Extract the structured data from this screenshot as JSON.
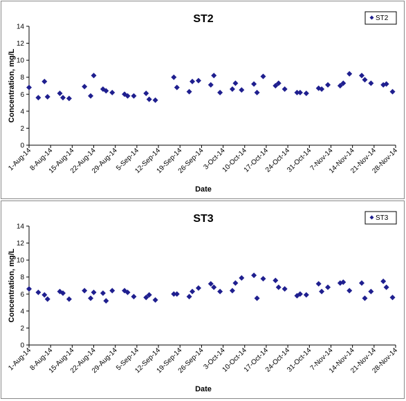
{
  "chart_data": [
    {
      "type": "scatter",
      "title": "ST2",
      "xlabel": "Date",
      "ylabel": "Concentration, mg/L",
      "ylim": [
        0,
        14
      ],
      "yticks": [
        0,
        2,
        4,
        6,
        8,
        10,
        12,
        14
      ],
      "xlim": [
        "2014-08-01",
        "2014-11-28"
      ],
      "xtick_labels": [
        "1-Aug-14",
        "8-Aug-14",
        "15-Aug-14",
        "22-Aug-14",
        "29-Aug-14",
        "5-Sep-14",
        "12-Sep-14",
        "19-Sep-14",
        "26-Sep-14",
        "3-Oct-14",
        "10-Oct-14",
        "17-Oct-14",
        "24-Oct-14",
        "31-Oct-14",
        "7-Nov-14",
        "14-Nov-14",
        "21-Nov-14",
        "28-Nov-14"
      ],
      "grid": false,
      "legend_position": "top-right",
      "series": [
        {
          "name": "ST2",
          "color": "#1f1f8f",
          "marker": "diamond",
          "points": [
            [
              "2014-08-01",
              6.8
            ],
            [
              "2014-08-04",
              5.6
            ],
            [
              "2014-08-06",
              7.5
            ],
            [
              "2014-08-07",
              5.7
            ],
            [
              "2014-08-11",
              6.1
            ],
            [
              "2014-08-12",
              5.6
            ],
            [
              "2014-08-14",
              5.5
            ],
            [
              "2014-08-19",
              6.9
            ],
            [
              "2014-08-21",
              5.8
            ],
            [
              "2014-08-22",
              8.2
            ],
            [
              "2014-08-25",
              6.6
            ],
            [
              "2014-08-26",
              6.4
            ],
            [
              "2014-08-28",
              6.2
            ],
            [
              "2014-09-01",
              6.0
            ],
            [
              "2014-09-02",
              5.8
            ],
            [
              "2014-09-04",
              5.8
            ],
            [
              "2014-09-08",
              6.1
            ],
            [
              "2014-09-09",
              5.4
            ],
            [
              "2014-09-11",
              5.3
            ],
            [
              "2014-09-17",
              8.0
            ],
            [
              "2014-09-18",
              6.8
            ],
            [
              "2014-09-22",
              6.3
            ],
            [
              "2014-09-23",
              7.5
            ],
            [
              "2014-09-25",
              7.6
            ],
            [
              "2014-09-29",
              7.1
            ],
            [
              "2014-09-30",
              8.2
            ],
            [
              "2014-10-02",
              6.2
            ],
            [
              "2014-10-06",
              6.6
            ],
            [
              "2014-10-07",
              7.3
            ],
            [
              "2014-10-09",
              6.5
            ],
            [
              "2014-10-13",
              7.2
            ],
            [
              "2014-10-14",
              6.2
            ],
            [
              "2014-10-16",
              8.1
            ],
            [
              "2014-10-20",
              7.0
            ],
            [
              "2014-10-21",
              7.3
            ],
            [
              "2014-10-23",
              6.6
            ],
            [
              "2014-10-27",
              6.2
            ],
            [
              "2014-10-28",
              6.2
            ],
            [
              "2014-10-30",
              6.1
            ],
            [
              "2014-11-03",
              6.7
            ],
            [
              "2014-11-04",
              6.6
            ],
            [
              "2014-11-06",
              7.1
            ],
            [
              "2014-11-10",
              7.0
            ],
            [
              "2014-11-11",
              7.3
            ],
            [
              "2014-11-13",
              8.4
            ],
            [
              "2014-11-17",
              8.2
            ],
            [
              "2014-11-18",
              7.7
            ],
            [
              "2014-11-20",
              7.3
            ],
            [
              "2014-11-24",
              7.1
            ],
            [
              "2014-11-25",
              7.2
            ],
            [
              "2014-11-27",
              6.3
            ]
          ]
        }
      ]
    },
    {
      "type": "scatter",
      "title": "ST3",
      "xlabel": "Date",
      "ylabel": "Concentration, mg/L",
      "ylim": [
        0,
        14
      ],
      "yticks": [
        0,
        2,
        4,
        6,
        8,
        10,
        12,
        14
      ],
      "xlim": [
        "2014-08-01",
        "2014-11-28"
      ],
      "xtick_labels": [
        "1-Aug-14",
        "8-Aug-14",
        "15-Aug-14",
        "22-Aug-14",
        "29-Aug-14",
        "5-Sep-14",
        "12-Sep-14",
        "19-Sep-14",
        "26-Sep-14",
        "3-Oct-14",
        "10-Oct-14",
        "17-Oct-14",
        "24-Oct-14",
        "31-Oct-14",
        "7-Nov-14",
        "14-Nov-14",
        "21-Nov-14",
        "28-Nov-14"
      ],
      "grid": false,
      "legend_position": "top-right",
      "series": [
        {
          "name": "ST3",
          "color": "#1f1f8f",
          "marker": "diamond",
          "points": [
            [
              "2014-08-01",
              6.6
            ],
            [
              "2014-08-04",
              6.2
            ],
            [
              "2014-08-06",
              5.9
            ],
            [
              "2014-08-07",
              5.4
            ],
            [
              "2014-08-11",
              6.3
            ],
            [
              "2014-08-12",
              6.1
            ],
            [
              "2014-08-14",
              5.4
            ],
            [
              "2014-08-19",
              6.4
            ],
            [
              "2014-08-21",
              5.5
            ],
            [
              "2014-08-22",
              6.2
            ],
            [
              "2014-08-25",
              6.1
            ],
            [
              "2014-08-26",
              5.2
            ],
            [
              "2014-08-28",
              6.4
            ],
            [
              "2014-09-01",
              6.4
            ],
            [
              "2014-09-02",
              6.2
            ],
            [
              "2014-09-04",
              5.7
            ],
            [
              "2014-09-08",
              5.6
            ],
            [
              "2014-09-09",
              5.9
            ],
            [
              "2014-09-11",
              5.3
            ],
            [
              "2014-09-17",
              6.0
            ],
            [
              "2014-09-18",
              6.0
            ],
            [
              "2014-09-22",
              5.7
            ],
            [
              "2014-09-23",
              6.3
            ],
            [
              "2014-09-25",
              6.7
            ],
            [
              "2014-09-29",
              7.2
            ],
            [
              "2014-09-30",
              6.8
            ],
            [
              "2014-10-02",
              6.3
            ],
            [
              "2014-10-06",
              6.4
            ],
            [
              "2014-10-07",
              7.3
            ],
            [
              "2014-10-09",
              7.9
            ],
            [
              "2014-10-13",
              8.2
            ],
            [
              "2014-10-14",
              5.5
            ],
            [
              "2014-10-16",
              7.8
            ],
            [
              "2014-10-20",
              7.6
            ],
            [
              "2014-10-21",
              6.8
            ],
            [
              "2014-10-23",
              6.6
            ],
            [
              "2014-10-27",
              5.8
            ],
            [
              "2014-10-28",
              6.0
            ],
            [
              "2014-10-30",
              5.9
            ],
            [
              "2014-11-03",
              7.2
            ],
            [
              "2014-11-04",
              6.3
            ],
            [
              "2014-11-06",
              6.8
            ],
            [
              "2014-11-10",
              7.3
            ],
            [
              "2014-11-11",
              7.4
            ],
            [
              "2014-11-13",
              6.4
            ],
            [
              "2014-11-17",
              7.3
            ],
            [
              "2014-11-18",
              5.5
            ],
            [
              "2014-11-20",
              6.3
            ],
            [
              "2014-11-24",
              7.5
            ],
            [
              "2014-11-25",
              6.8
            ],
            [
              "2014-11-27",
              5.6
            ]
          ]
        }
      ]
    }
  ]
}
